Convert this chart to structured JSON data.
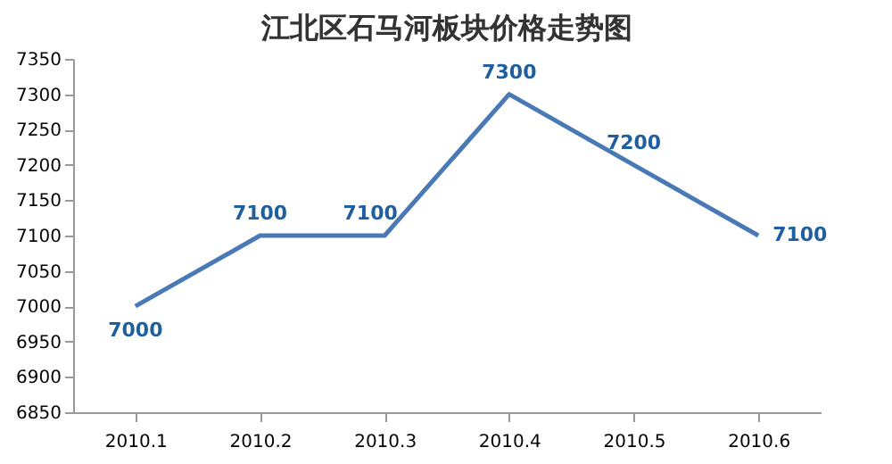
{
  "chart_data": {
    "type": "line",
    "title": "江北区石马河板块价格走势图",
    "categories": [
      "2010.1",
      "2010.2",
      "2010.3",
      "2010.4",
      "2010.5",
      "2010.6"
    ],
    "series": [
      {
        "color": "#4a7ab5",
        "values": [
          7000,
          7100,
          7100,
          7300,
          7200,
          7100
        ]
      }
    ],
    "ylim": [
      6850,
      7350
    ],
    "yticks": [
      6850,
      6900,
      6950,
      7000,
      7050,
      7100,
      7150,
      7200,
      7250,
      7300,
      7350
    ],
    "grid": false,
    "marker": "none",
    "line_style": "solid",
    "data_labels": true
  }
}
